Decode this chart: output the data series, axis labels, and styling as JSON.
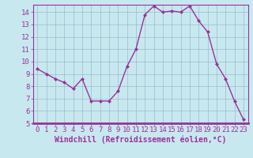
{
  "hours": [
    0,
    1,
    2,
    3,
    4,
    5,
    6,
    7,
    8,
    9,
    10,
    11,
    12,
    13,
    14,
    15,
    16,
    17,
    18,
    19,
    20,
    21,
    22,
    23
  ],
  "values": [
    9.4,
    9.0,
    8.6,
    8.3,
    7.8,
    8.6,
    6.8,
    6.8,
    6.8,
    7.6,
    9.6,
    11.0,
    13.8,
    14.5,
    14.0,
    14.1,
    14.0,
    14.5,
    13.3,
    12.4,
    9.8,
    8.6,
    6.8,
    5.3
  ],
  "line_color": "#993399",
  "marker": "D",
  "marker_size": 2.0,
  "bg_color": "#c8e8f0",
  "grid_color": "#99bbcc",
  "xlabel": "Windchill (Refroidissement éolien,°C)",
  "ylim": [
    5,
    14.6
  ],
  "xlim": [
    -0.5,
    23.5
  ],
  "yticks": [
    5,
    6,
    7,
    8,
    9,
    10,
    11,
    12,
    13,
    14
  ],
  "xticks": [
    0,
    1,
    2,
    3,
    4,
    5,
    6,
    7,
    8,
    9,
    10,
    11,
    12,
    13,
    14,
    15,
    16,
    17,
    18,
    19,
    20,
    21,
    22,
    23
  ],
  "tick_label_fontsize": 6.5,
  "xlabel_fontsize": 7.0,
  "line_width": 1.0,
  "spine_color": "#993399",
  "bottom_bar_color": "#993399"
}
